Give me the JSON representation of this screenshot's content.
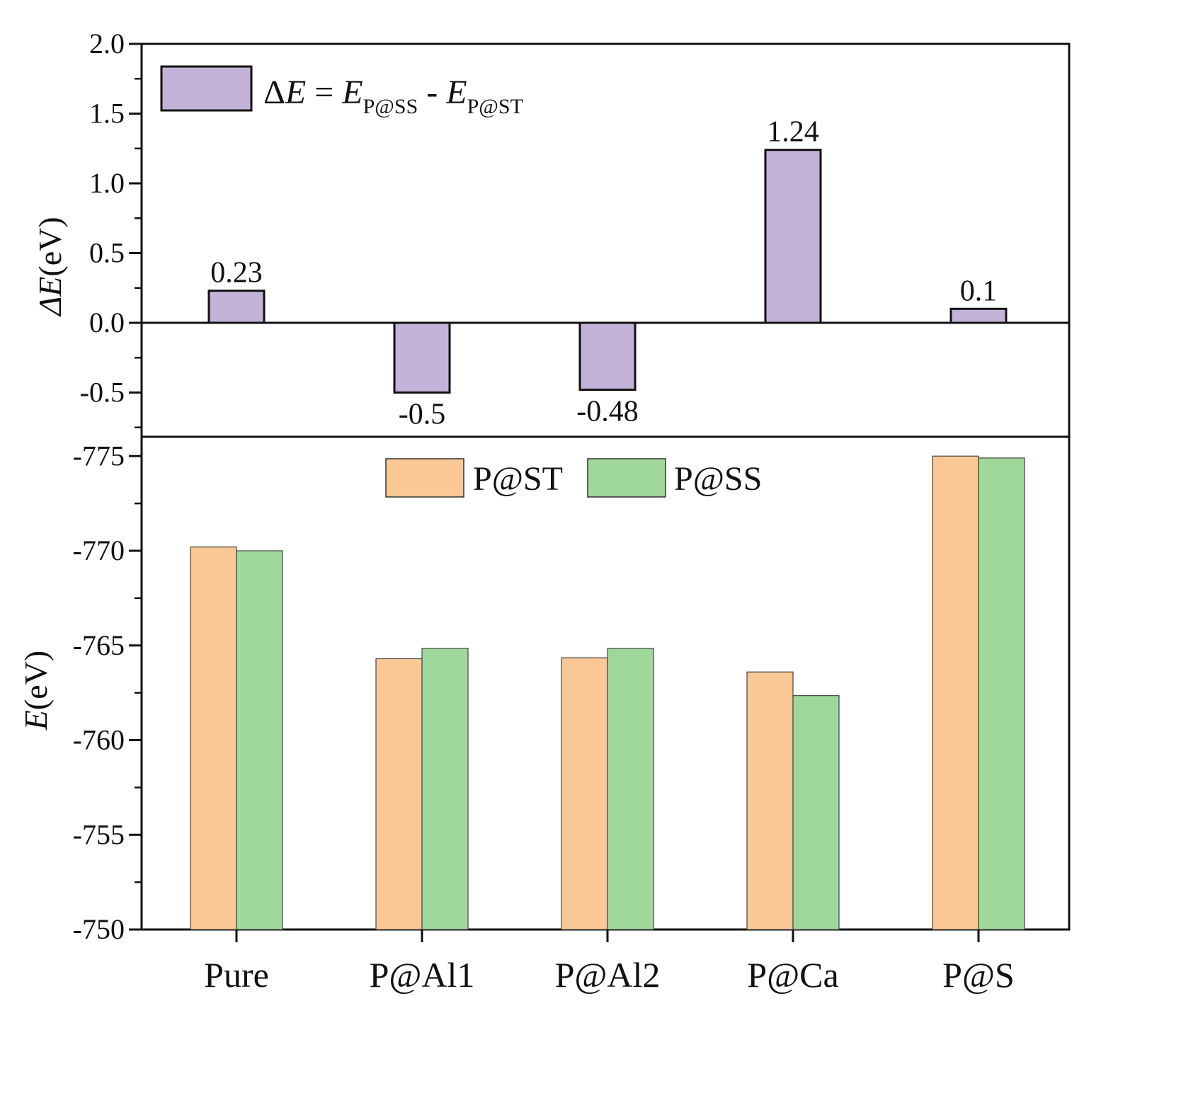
{
  "chart_data": [
    {
      "type": "bar",
      "panel": "top",
      "categories": [
        "Pure",
        "P@Al1",
        "P@Al2",
        "P@Ca",
        "P@S"
      ],
      "series": [
        {
          "name": "ΔE = E_P@SS - E_P@ST",
          "values": [
            0.23,
            -0.5,
            -0.48,
            1.24,
            0.1
          ],
          "color": "#c3b3d8"
        }
      ],
      "data_labels": [
        "0.23",
        "-0.5",
        "-0.48",
        "1.24",
        "0.1"
      ],
      "ylabel": "ΔE(eV)",
      "ylabel_symbol": "ΔE",
      "ylabel_unit": "(eV)",
      "ylim": [
        -0.76,
        2.0
      ],
      "yticks": [
        2.0,
        1.5,
        1.0,
        0.5,
        0.0,
        -0.5
      ],
      "ytick_labels": [
        "2.0",
        "1.5",
        "1.0",
        "0.5",
        "0.0",
        "-0.5"
      ],
      "legend": {
        "position": "top-left",
        "prefix": "Δ",
        "e1": "E",
        "equals": " = ",
        "e2": "E",
        "sub1": "P@SS",
        "minus": " - ",
        "e3": "E",
        "sub2": "P@ST"
      }
    },
    {
      "type": "bar",
      "panel": "bottom",
      "categories": [
        "Pure",
        "P@Al1",
        "P@Al2",
        "P@Ca",
        "P@S"
      ],
      "series": [
        {
          "name": "P@ST",
          "values": [
            -770.2,
            -764.3,
            -764.35,
            -763.6,
            -775.0
          ],
          "color": "#f9c894"
        },
        {
          "name": "P@SS",
          "values": [
            -770.0,
            -764.85,
            -764.85,
            -762.35,
            -774.9
          ],
          "color": "#9fd89a"
        }
      ],
      "ylabel": "E(eV)",
      "ylabel_symbol": "E",
      "ylabel_unit": "(eV)",
      "ylim": [
        -750,
        -775.9
      ],
      "yticks": [
        -775,
        -770,
        -765,
        -760,
        -755,
        -750
      ],
      "ytick_labels": [
        "-775",
        "-770",
        "-765",
        "-760",
        "-755",
        "-750"
      ],
      "xtick_labels": [
        "Pure",
        "P@Al1",
        "P@Al2",
        "P@Ca",
        "P@S"
      ],
      "legend": {
        "position": "top-center",
        "entries": [
          "P@ST",
          "P@SS"
        ]
      }
    }
  ]
}
